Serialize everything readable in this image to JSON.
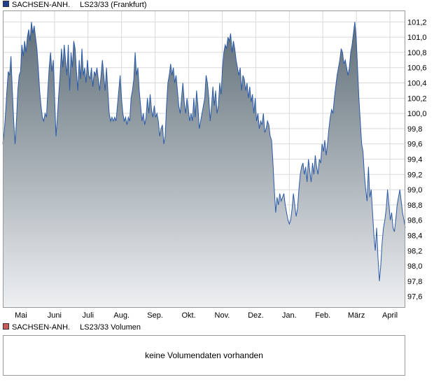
{
  "colors": {
    "line": "#2b5aa8",
    "area_top": "#5f6e78",
    "area_bottom": "#eef0f2",
    "grid": "#d9d9d9",
    "border": "#999999",
    "price_swatch": "#1f3f8f",
    "volume_swatch": "#c95a5a"
  },
  "price_legend": {
    "name": "SACHSEN-ANH.",
    "instrument": "LS23/33 (Frankfurt)"
  },
  "volume_legend": {
    "name": "SACHSEN-ANH.",
    "instrument": "LS23/33 Volumen"
  },
  "volume_panel": {
    "message": "keine Volumendaten vorhanden"
  },
  "chart_data": {
    "type": "area",
    "ylim": [
      97.45,
      101.35
    ],
    "y_ticks": [
      "101,2",
      "101,0",
      "100,8",
      "100,6",
      "100,4",
      "100,2",
      "100,0",
      "99,8",
      "99,6",
      "99,4",
      "99,2",
      "99,0",
      "98,8",
      "98,6",
      "98,4",
      "98,2",
      "98,0",
      "97,8",
      "97,6"
    ],
    "x_labels": [
      "Mai",
      "Juni",
      "Juli",
      "Aug.",
      "Sep.",
      "Okt.",
      "Nov.",
      "Dez.",
      "Jan.",
      "Feb.",
      "März",
      "April"
    ],
    "grid": true,
    "series": [
      {
        "values": [
          99.6,
          99.75,
          100.0,
          100.3,
          100.55,
          100.5,
          100.75,
          100.3,
          99.9,
          99.6,
          99.9,
          100.3,
          100.5,
          100.55,
          100.9,
          100.75,
          100.95,
          100.8,
          101.0,
          101.1,
          100.95,
          101.2,
          101.05,
          101.15,
          101.0,
          100.85,
          100.6,
          100.3,
          100.1,
          99.95,
          99.9,
          100.0,
          99.95,
          100.3,
          100.6,
          100.8,
          100.55,
          100.7,
          100.2,
          99.7,
          99.95,
          100.25,
          100.5,
          100.85,
          100.6,
          100.9,
          100.7,
          100.5,
          100.9,
          100.3,
          100.8,
          100.6,
          100.95,
          100.85,
          100.55,
          100.3,
          100.7,
          100.45,
          100.85,
          100.5,
          100.6,
          100.4,
          100.7,
          100.5,
          100.45,
          100.6,
          100.35,
          100.55,
          100.5,
          100.6,
          100.45,
          100.3,
          100.5,
          100.7,
          100.5,
          100.3,
          100.6,
          100.3,
          100.0,
          99.9,
          99.95,
          99.9,
          99.95,
          99.9,
          100.1,
          100.3,
          100.5,
          100.2,
          100.0,
          99.9,
          99.95,
          99.85,
          99.95,
          99.9,
          100.2,
          100.3,
          100.45,
          100.8,
          100.5,
          100.6,
          100.3,
          100.1,
          99.9,
          100.0,
          99.85,
          99.95,
          100.2,
          100.0,
          100.25,
          100.05,
          99.95,
          100.1,
          99.95,
          100.0,
          99.9,
          99.7,
          99.8,
          99.85,
          99.6,
          99.7,
          100.1,
          100.4,
          100.5,
          100.65,
          100.5,
          100.6,
          100.4,
          100.5,
          100.3,
          100.1,
          100.0,
          100.2,
          100.4,
          100.15,
          100.0,
          100.2,
          100.05,
          99.9,
          100.0,
          99.9,
          100.2,
          99.95,
          100.3,
          100.1,
          99.8,
          99.9,
          100.0,
          100.1,
          100.2,
          100.5,
          100.4,
          100.2,
          99.9,
          100.1,
          100.35,
          100.1,
          100.3,
          100.0,
          100.1,
          100.4,
          100.25,
          100.6,
          100.8,
          100.9,
          100.85,
          101.0,
          100.95,
          101.05,
          100.8,
          100.95,
          100.85,
          100.7,
          100.6,
          100.5,
          100.6,
          100.3,
          100.5,
          100.45,
          100.3,
          100.4,
          100.2,
          100.35,
          100.15,
          100.25,
          100.0,
          100.2,
          99.9,
          100.0,
          99.8,
          99.9,
          99.85,
          100.0,
          99.75,
          99.8,
          99.9,
          99.85,
          99.7,
          99.65,
          99.35,
          99.0,
          98.7,
          98.9,
          98.8,
          98.95,
          98.85,
          98.9,
          98.95,
          98.8,
          98.7,
          98.6,
          98.55,
          98.6,
          98.75,
          98.95,
          98.8,
          98.65,
          98.75,
          99.0,
          99.2,
          99.3,
          99.35,
          99.2,
          99.3,
          99.1,
          99.4,
          99.25,
          99.1,
          99.35,
          99.2,
          99.45,
          99.3,
          99.2,
          99.4,
          99.35,
          99.6,
          99.5,
          99.65,
          99.45,
          99.6,
          99.8,
          99.95,
          100.05,
          100.0,
          100.2,
          100.35,
          100.5,
          100.6,
          100.7,
          100.85,
          100.8,
          100.65,
          100.7,
          100.6,
          100.5,
          100.6,
          100.8,
          100.9,
          101.05,
          101.2,
          101.0,
          100.6,
          100.2,
          99.9,
          99.6,
          99.5,
          99.2,
          99.0,
          98.85,
          99.3,
          98.9,
          99.0,
          98.7,
          98.4,
          98.2,
          98.5,
          98.1,
          97.8,
          98.0,
          98.3,
          98.5,
          98.6,
          98.75,
          99.0,
          98.8,
          98.6,
          98.7,
          98.5,
          98.45,
          98.6,
          98.8,
          98.9,
          99.0,
          98.85,
          98.7,
          98.6,
          98.5
        ]
      }
    ]
  }
}
